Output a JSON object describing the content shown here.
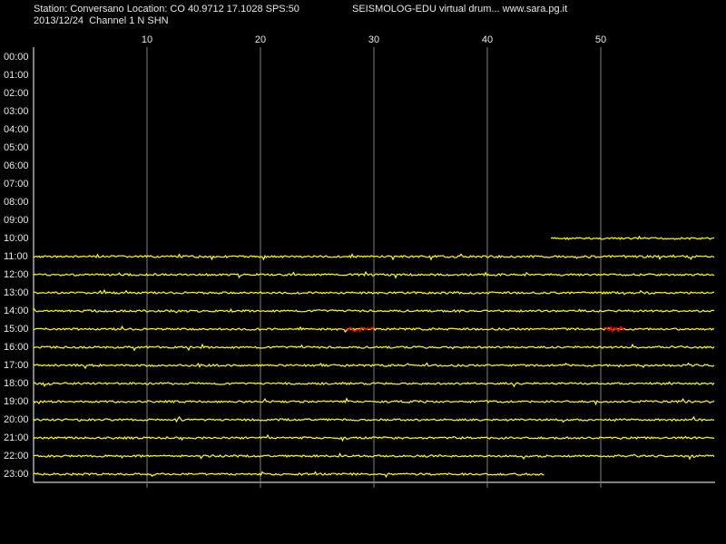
{
  "chart_data": {
    "type": "drum",
    "title": "Station: Conversano Location: CO 40.9712 17.1028 SPS:50",
    "subtitle": "2013/12/24  Channel 1 N SHN",
    "source": "SEISMOLOG-EDU virtual drum... www.sara.pg.it",
    "categories": [
      "00:00",
      "01:00",
      "02:00",
      "03:00",
      "04:00",
      "05:00",
      "06:00",
      "07:00",
      "08:00",
      "09:00",
      "10:00",
      "11:00",
      "12:00",
      "13:00",
      "14:00",
      "15:00",
      "16:00",
      "17:00",
      "18:00",
      "19:00",
      "20:00",
      "21:00",
      "22:00",
      "23:00"
    ],
    "trace_start": [
      null,
      null,
      null,
      null,
      null,
      null,
      null,
      null,
      null,
      null,
      45.6,
      0,
      0,
      0,
      0,
      0,
      0,
      0,
      0,
      0,
      0,
      0,
      0,
      0
    ],
    "trace_end": [
      null,
      null,
      null,
      null,
      null,
      null,
      null,
      null,
      null,
      null,
      60,
      60,
      60,
      60,
      60,
      60,
      60,
      60,
      60,
      60,
      60,
      60,
      60,
      45
    ],
    "events": [
      {
        "row": 15,
        "start": 27.7,
        "end": 30,
        "color": "#ff0000"
      },
      {
        "row": 15,
        "start": 50.3,
        "end": 52.2,
        "color": "#ff0000"
      }
    ],
    "color": "#ffff00",
    "grid_color": "#808080",
    "xlim": [
      0,
      60
    ],
    "xticks": [
      10,
      20,
      30,
      40,
      50
    ],
    "grid": true
  }
}
